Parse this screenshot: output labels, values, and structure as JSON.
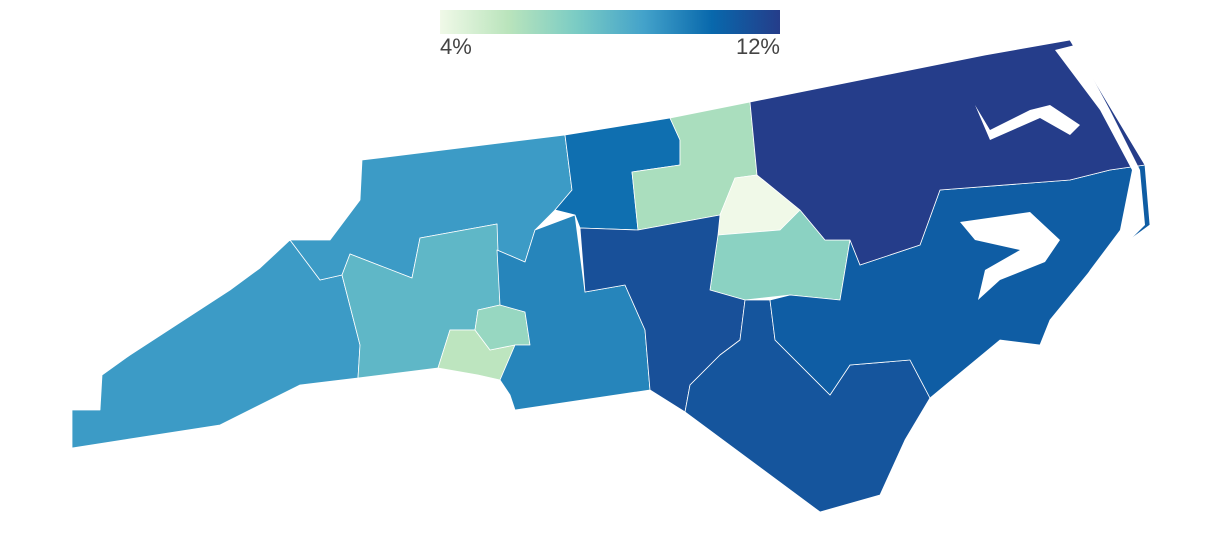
{
  "chart_data": {
    "type": "choropleth",
    "colors": [
      "#f0f9e8",
      "#bae4bc",
      "#7bccc4",
      "#43a2ca",
      "#0868ac",
      "#253d8a"
    ],
    "clim": [
      4,
      12
    ],
    "ticks": [
      {
        "value": 4,
        "label": "4%"
      },
      {
        "value": 12,
        "label": "12%"
      }
    ],
    "values": [
      9,
      9,
      8,
      5.5,
      6.5,
      9.6,
      10.2,
      6,
      4,
      6.8,
      11.3,
      11.1,
      10.8,
      12
    ]
  }
}
